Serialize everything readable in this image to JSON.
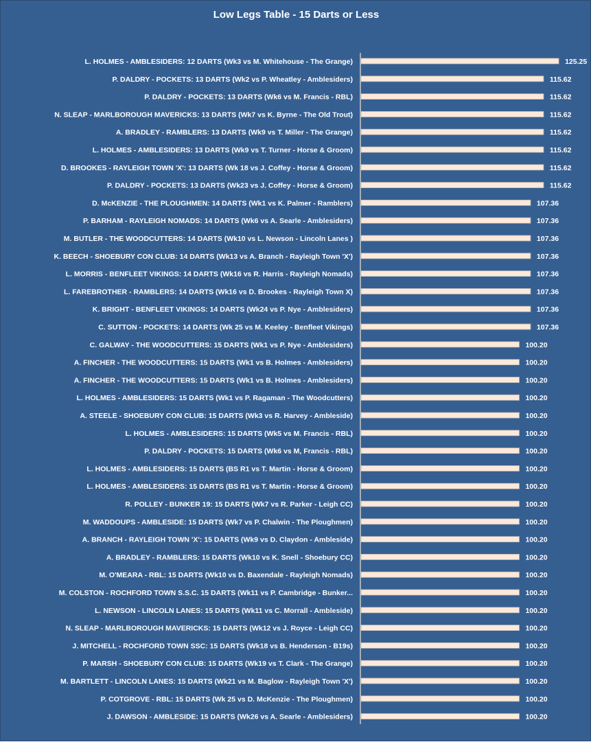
{
  "colors": {
    "background": "#365f91",
    "bar": "#fde9d9",
    "bar_border": "#b7b7b7",
    "text": "#ffffff"
  },
  "chart_data": {
    "type": "bar",
    "orientation": "horizontal",
    "title": "Low Legs Table - 15 Darts or Less",
    "xlim": [
      0,
      140
    ],
    "grid": false,
    "categories": [
      "L. HOLMES - AMBLESIDERS: 12 DARTS (Wk3 vs M. Whitehouse - The Grange)",
      "P. DALDRY - POCKETS: 13 DARTS (Wk2 vs P. Wheatley - Amblesiders)",
      "P. DALDRY - POCKETS: 13 DARTS (Wk6 vs M. Francis - RBL)",
      "N. SLEAP - MARLBOROUGH MAVERICKS: 13 DARTS (Wk7 vs K. Byrne - The Old Trout)",
      "A. BRADLEY - RAMBLERS: 13 DARTS (Wk9 vs T. Miller - The Grange)",
      "L. HOLMES - AMBLESIDERS: 13 DARTS (Wk9 vs T. Turner - Horse & Groom)",
      "D. BROOKES - RAYLEIGH TOWN 'X': 13 DARTS (Wk 18 vs J. Coffey - Horse & Groom)",
      "P. DALDRY - POCKETS: 13 DARTS (Wk23 vs J. Coffey - Horse & Groom)",
      "D. McKENZIE - THE PLOUGHMEN: 14 DARTS (Wk1 vs K. Palmer - Ramblers)",
      "P. BARHAM - RAYLEIGH NOMADS: 14 DARTS (Wk6 vs A. Searle - Amblesiders)",
      "M. BUTLER - THE WOODCUTTERS: 14 DARTS (Wk10 vs L. Newson - Lincoln Lanes )",
      "K. BEECH - SHOEBURY CON CLUB: 14 DARTS (Wk13 vs A. Branch - Rayleigh Town 'X')",
      "L. MORRIS - BENFLEET VIKINGS: 14 DARTS (Wk16 vs R. Harris - Rayleigh Nomads)",
      "L. FAREBROTHER - RAMBLERS: 14 DARTS (Wk16 vs D. Brookes - Rayleigh Town X)",
      "K. BRIGHT - BENFLEET VIKINGS: 14 DARTS (Wk24 vs P. Nye - Amblesiders)",
      "C. SUTTON - POCKETS: 14 DARTS (Wk 25 vs M. Keeley - Benfleet Vikings)",
      "C. GALWAY - THE WOODCUTTERS: 15 DARTS (Wk1 vs P. Nye - Amblesiders)",
      "A. FINCHER - THE WOODCUTTERS: 15 DARTS (Wk1 vs B. Holmes - Amblesiders)",
      "A. FINCHER - THE WOODCUTTERS: 15 DARTS (Wk1 vs B. Holmes - Amblesiders)",
      "L. HOLMES - AMBLESIDERS: 15 DARTS (Wk1 vs P. Ragaman - The Woodcutters)",
      "A. STEELE - SHOEBURY CON CLUB: 15 DARTS (Wk3 vs R. Harvey - Ambleside)",
      "L. HOLMES - AMBLESIDERS: 15 DARTS (Wk5 vs M. Francis - RBL)",
      "P. DALDRY - POCKETS: 15 DARTS (Wk6 vs M, Francis - RBL)",
      "L. HOLMES - AMBLESIDERS: 15 DARTS (BS R1 vs T. Martin - Horse & Groom)",
      "L. HOLMES - AMBLESIDERS: 15 DARTS (BS R1 vs T. Martin - Horse & Groom)",
      "R. POLLEY - BUNKER 19: 15 DARTS (Wk7 vs R. Parker - Leigh CC)",
      "M. WADDOUPS - AMBLESIDE: 15 DARTS (Wk7 vs P. Chalwin - The Ploughmen)",
      "A. BRANCH - RAYLEIGH TOWN 'X': 15 DARTS (Wk9 vs D. Claydon - Ambleside)",
      "A. BRADLEY - RAMBLERS: 15 DARTS (Wk10 vs K. Snell - Shoebury CC)",
      "M. O'MEARA - RBL: 15 DARTS (Wk10 vs D. Baxendale - Rayleigh Nomads)",
      "M. COLSTON - ROCHFORD TOWN S.S.C. 15 DARTS (Wk11 vs P. Cambridge - Bunker...",
      "L. NEWSON - LINCOLN LANES: 15 DARTS (Wk11 vs C. Morrall - Ambleside)",
      "N. SLEAP - MARLBOROUGH MAVERICKS: 15 DARTS (Wk12 vs J. Royce - Leigh CC)",
      "J. MITCHELL - ROCHFORD TOWN SSC: 15 DARTS (Wk18 vs B. Henderson - B19s)",
      "P. MARSH - SHOEBURY CON CLUB: 15 DARTS (Wk19 vs T. Clark - The Grange)",
      "M. BARTLETT - LINCOLN LANES: 15 DARTS (Wk21 vs M. Baglow - Rayleigh Town 'X')",
      "P. COTGROVE - RBL: 15 DARTS (Wk 25 vs D. McKenzie - The Ploughmen)",
      "J. DAWSON - AMBLESIDE: 15 DARTS (Wk26 vs A. Searle - Amblesiders)"
    ],
    "values": [
      125.25,
      115.62,
      115.62,
      115.62,
      115.62,
      115.62,
      115.62,
      115.62,
      107.36,
      107.36,
      107.36,
      107.36,
      107.36,
      107.36,
      107.36,
      107.36,
      100.2,
      100.2,
      100.2,
      100.2,
      100.2,
      100.2,
      100.2,
      100.2,
      100.2,
      100.2,
      100.2,
      100.2,
      100.2,
      100.2,
      100.2,
      100.2,
      100.2,
      100.2,
      100.2,
      100.2,
      100.2,
      100.2
    ],
    "data_labels": [
      "125.25",
      "115.62",
      "115.62",
      "115.62",
      "115.62",
      "115.62",
      "115.62",
      "115.62",
      "107.36",
      "107.36",
      "107.36",
      "107.36",
      "107.36",
      "107.36",
      "107.36",
      "107.36",
      "100.20",
      "100.20",
      "100.20",
      "100.20",
      "100.20",
      "100.20",
      "100.20",
      "100.20",
      "100.20",
      "100.20",
      "100.20",
      "100.20",
      "100.20",
      "100.20",
      "100.20",
      "100.20",
      "100.20",
      "100.20",
      "100.20",
      "100.20",
      "100.20",
      "100.20"
    ]
  }
}
